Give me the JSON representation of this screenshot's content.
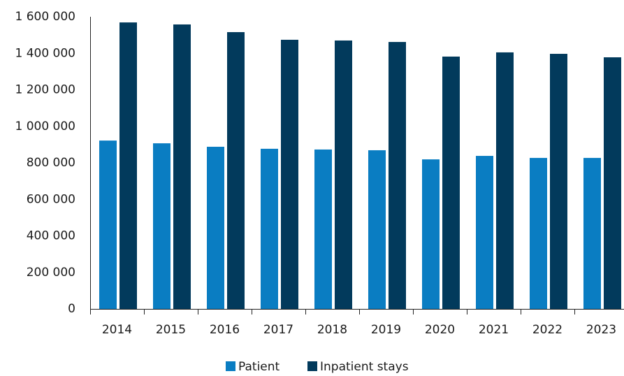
{
  "chart_data": {
    "type": "bar",
    "categories": [
      "2014",
      "2015",
      "2016",
      "2017",
      "2018",
      "2019",
      "2020",
      "2021",
      "2022",
      "2023"
    ],
    "series": [
      {
        "name": "Patient",
        "color": "#0a7dc2",
        "values": [
          922000,
          907000,
          888000,
          877000,
          873000,
          869000,
          819000,
          838000,
          827000,
          827000
        ]
      },
      {
        "name": "Inpatient stays",
        "color": "#023a5c",
        "values": [
          1569000,
          1558000,
          1516000,
          1474000,
          1470000,
          1462000,
          1382000,
          1405000,
          1397000,
          1378000
        ]
      }
    ],
    "ylim": [
      0,
      1600000
    ],
    "yticks": [
      0,
      {
        "value": 200000,
        "label": "200 000"
      },
      {
        "value": 400000,
        "label": "400 000"
      },
      {
        "value": 600000,
        "label": "600 000"
      },
      {
        "value": 800000,
        "label": "800 000"
      },
      {
        "value": 1000000,
        "label": "1 000 000"
      },
      {
        "value": 1200000,
        "label": "1 200 000"
      },
      {
        "value": 1400000,
        "label": "1 400 000"
      },
      {
        "value": 1600000,
        "label": "1 600 000"
      }
    ],
    "grid": false,
    "legend": "bottom"
  }
}
